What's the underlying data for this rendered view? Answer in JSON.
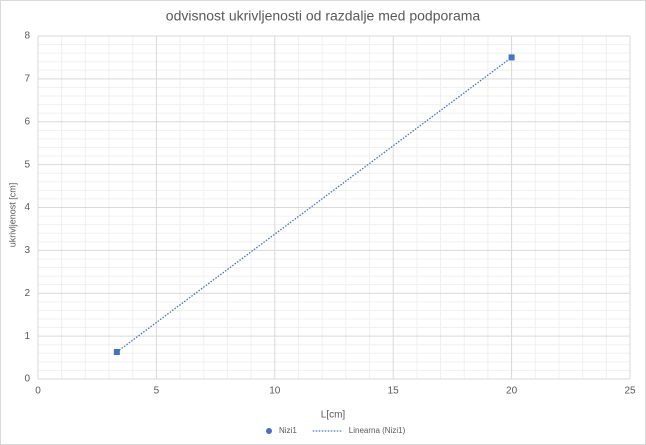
{
  "chart_data": {
    "type": "scatter",
    "title": "odvisnost ukrivljenosti od razdalje med podporama",
    "x_label": "L[cm]",
    "y_label": "ukrivljenost [cm]",
    "series": [
      {
        "name": "Nizi1",
        "color": "#4472c4",
        "x": [
          3.33,
          20
        ],
        "values": [
          0.63,
          7.5
        ]
      },
      {
        "name": "Linearna (Nizi1)",
        "color": "#4472c4",
        "style": "dotted",
        "x": [
          3.33,
          20
        ],
        "values": [
          0.63,
          7.5
        ]
      }
    ],
    "xlim": [
      0,
      25
    ],
    "xticks": [
      0,
      5,
      10,
      15,
      20,
      25
    ],
    "ylim": [
      0,
      8
    ],
    "yticks": [
      0,
      1,
      2,
      3,
      4,
      5,
      6,
      7,
      8
    ],
    "grid": true,
    "minor_grid": true,
    "legend": "bottom"
  }
}
